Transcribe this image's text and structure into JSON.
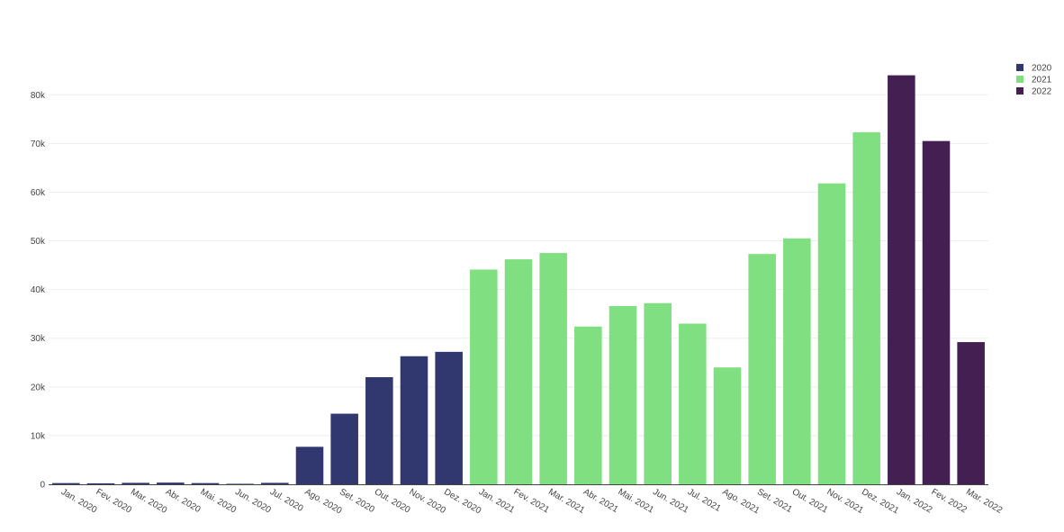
{
  "chart_data": {
    "type": "bar",
    "categories": [
      "Jan. 2020",
      "Fev. 2020",
      "Mar. 2020",
      "Abr. 2020",
      "Mai. 2020",
      "Jun. 2020",
      "Jul. 2020",
      "Ago. 2020",
      "Set. 2020",
      "Out. 2020",
      "Nov. 2020",
      "Dez. 2020",
      "Jan. 2021",
      "Fev. 2021",
      "Mar. 2021",
      "Abr. 2021",
      "Mai. 2021",
      "Jun. 2021",
      "Jul. 2021",
      "Ago. 2021",
      "Set. 2021",
      "Out. 2021",
      "Nov. 2021",
      "Dez. 2021",
      "Jan. 2022",
      "Fev. 2022",
      "Mar. 2022"
    ],
    "series": [
      {
        "name": "2020",
        "color": "#30386f",
        "values": [
          250,
          200,
          300,
          350,
          250,
          100,
          300,
          7700,
          14500,
          22000,
          26300,
          27200,
          null,
          null,
          null,
          null,
          null,
          null,
          null,
          null,
          null,
          null,
          null,
          null,
          null,
          null,
          null
        ]
      },
      {
        "name": "2021",
        "color": "#80df80",
        "values": [
          null,
          null,
          null,
          null,
          null,
          null,
          null,
          null,
          null,
          null,
          null,
          null,
          44100,
          46200,
          47500,
          32400,
          36600,
          37200,
          33000,
          24000,
          47300,
          50500,
          61800,
          72300,
          null,
          null,
          null
        ]
      },
      {
        "name": "2022",
        "color": "#441f51",
        "values": [
          null,
          null,
          null,
          null,
          null,
          null,
          null,
          null,
          null,
          null,
          null,
          null,
          null,
          null,
          null,
          null,
          null,
          null,
          null,
          null,
          null,
          null,
          null,
          null,
          84000,
          70500,
          29200
        ]
      }
    ],
    "yticks": [
      0,
      10000,
      20000,
      30000,
      40000,
      50000,
      60000,
      70000,
      80000
    ],
    "ytick_labels": [
      "0",
      "10k",
      "20k",
      "30k",
      "40k",
      "50k",
      "60k",
      "70k",
      "80k"
    ],
    "ylim": [
      0,
      88000
    ],
    "grid": true,
    "legend_position": "top-right",
    "title": "",
    "xlabel": "",
    "ylabel": ""
  }
}
